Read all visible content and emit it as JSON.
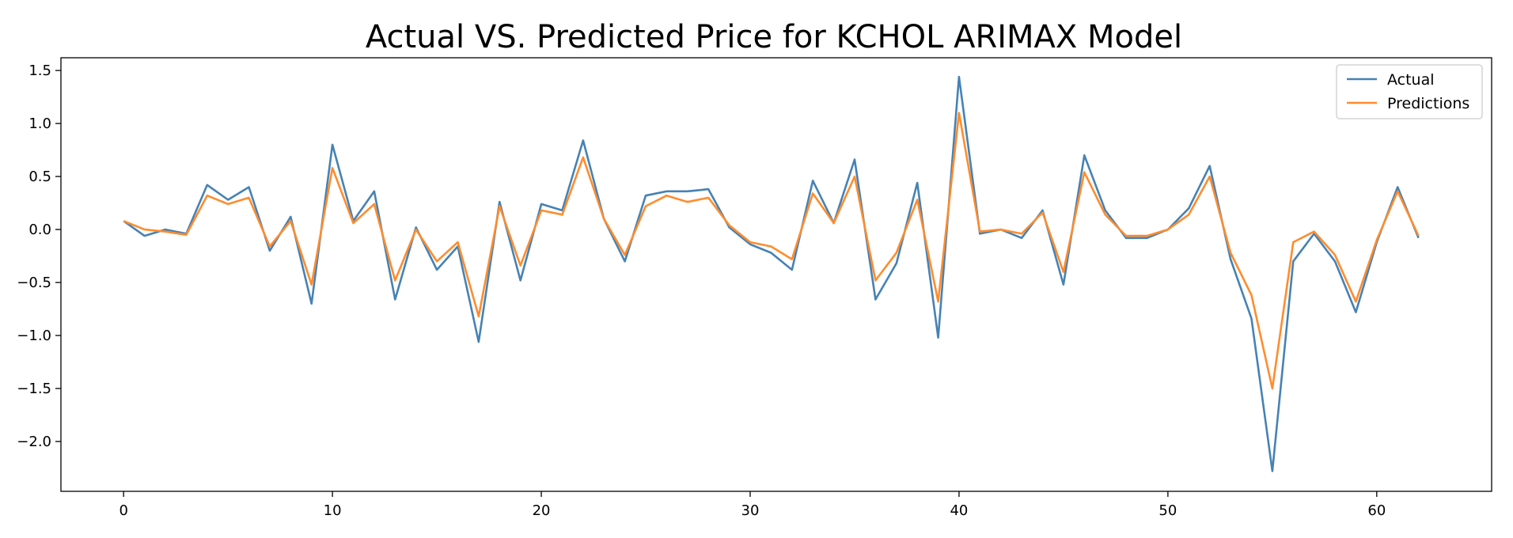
{
  "chart_data": {
    "type": "line",
    "title": "Actual  VS. Predicted Price for KCHOL ARIMAX Model",
    "xlabel": "",
    "ylabel": "",
    "xlim": [
      -3,
      65.5
    ],
    "ylim": [
      -2.47,
      1.62
    ],
    "xticks": [
      0,
      10,
      20,
      30,
      40,
      50,
      60
    ],
    "yticks": [
      1.5,
      1.0,
      0.5,
      0.0,
      -0.5,
      -1.0,
      -1.5,
      -2.0
    ],
    "ytick_labels": [
      "1.5",
      "1.0",
      "0.5",
      "0.0",
      "−0.5",
      "−1.0",
      "−1.5",
      "−2.0"
    ],
    "legend_position": "top-right",
    "grid": false,
    "series": [
      {
        "name": "Actual",
        "color": "#4682b4",
        "values": [
          0.08,
          -0.06,
          0.0,
          -0.04,
          0.42,
          0.28,
          0.4,
          -0.2,
          0.12,
          -0.7,
          0.8,
          0.08,
          0.36,
          -0.66,
          0.02,
          -0.38,
          -0.16,
          -1.06,
          0.26,
          -0.48,
          0.24,
          0.18,
          0.84,
          0.1,
          -0.3,
          0.32,
          0.36,
          0.36,
          0.38,
          0.02,
          -0.14,
          -0.22,
          -0.38,
          0.46,
          0.06,
          0.66,
          -0.66,
          -0.32,
          0.44,
          -1.02,
          1.44,
          -0.04,
          0.0,
          -0.08,
          0.18,
          -0.52,
          0.7,
          0.18,
          -0.08,
          -0.08,
          0.0,
          0.2,
          0.6,
          -0.28,
          -0.84,
          -2.28,
          -0.3,
          -0.04,
          -0.3,
          -0.78,
          -0.12,
          0.4,
          -0.08
        ]
      },
      {
        "name": "Predictions",
        "color": "#ff8c2e",
        "values": [
          0.08,
          0.0,
          -0.02,
          -0.05,
          0.32,
          0.24,
          0.3,
          -0.16,
          0.08,
          -0.52,
          0.58,
          0.06,
          0.24,
          -0.48,
          0.0,
          -0.3,
          -0.12,
          -0.82,
          0.22,
          -0.34,
          0.18,
          0.14,
          0.68,
          0.1,
          -0.24,
          0.22,
          0.32,
          0.26,
          0.3,
          0.04,
          -0.12,
          -0.16,
          -0.28,
          0.34,
          0.06,
          0.5,
          -0.48,
          -0.22,
          0.28,
          -0.68,
          1.1,
          -0.02,
          0.0,
          -0.04,
          0.16,
          -0.4,
          0.54,
          0.14,
          -0.06,
          -0.06,
          0.0,
          0.14,
          0.5,
          -0.22,
          -0.62,
          -1.5,
          -0.12,
          -0.02,
          -0.24,
          -0.68,
          -0.1,
          0.36,
          -0.06
        ]
      }
    ]
  }
}
